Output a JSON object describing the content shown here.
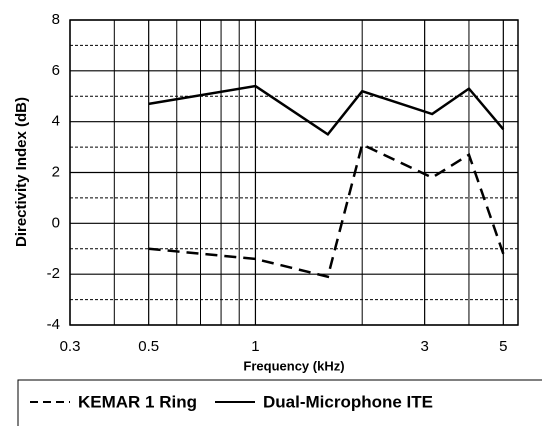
{
  "chart_data": {
    "type": "line",
    "x_label": "Frequency (kHz)",
    "y_label": "Directivity Index (dB)",
    "x": [
      0.5,
      1,
      1.6,
      2,
      3.15,
      4,
      5
    ],
    "series": [
      {
        "name": "KEMAR 1 Ring",
        "color": "#000000",
        "dash": true,
        "values": [
          -1,
          -1.4,
          -2.1,
          3.1,
          1.8,
          2.7,
          -1.2
        ]
      },
      {
        "name": "Dual-Microphone ITE",
        "color": "#000000",
        "dash": false,
        "values": [
          4.7,
          5.4,
          3.5,
          5.2,
          4.3,
          5.3,
          3.7
        ]
      }
    ],
    "xlim": [
      0.3,
      5.5
    ],
    "xscale": "log",
    "xticks": [
      0.3,
      0.5,
      1,
      3,
      5
    ],
    "xgrid": [
      0.4,
      0.6,
      0.7,
      0.8,
      0.9,
      2,
      4
    ],
    "ylim": [
      -4,
      8
    ],
    "yticks": [
      -4,
      -2,
      0,
      2,
      4,
      6,
      8
    ],
    "yminor": [
      -3,
      -1,
      1,
      3,
      5,
      7
    ],
    "grid": true
  }
}
